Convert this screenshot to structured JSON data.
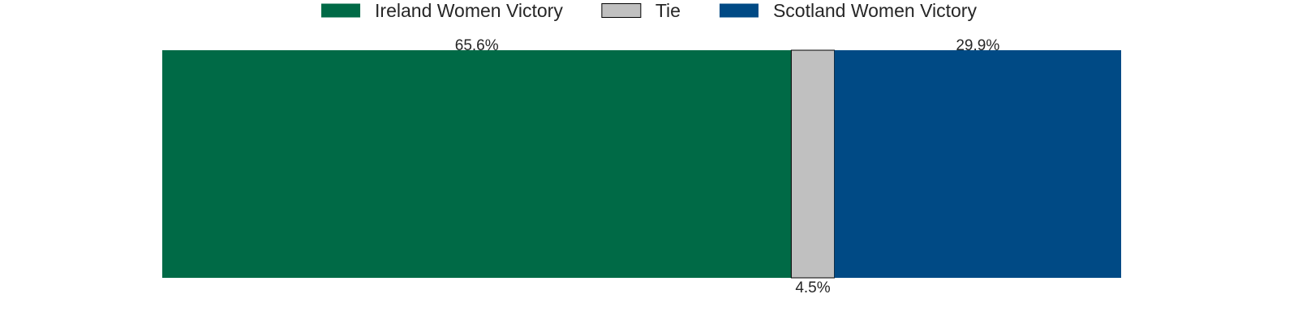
{
  "chart_data": {
    "type": "bar",
    "orientation": "horizontal",
    "stacked": true,
    "categories": [
      ""
    ],
    "series": [
      {
        "name": "Ireland Women Victory",
        "values": [
          65.6
        ],
        "label": "65.6%",
        "color": "#006a46"
      },
      {
        "name": "Tie",
        "values": [
          4.5
        ],
        "label": "4.5%",
        "color": "#c0c0c0"
      },
      {
        "name": "Scotland Women Victory",
        "values": [
          29.9
        ],
        "label": "29.9%",
        "color": "#004a85"
      }
    ],
    "xlim": [
      0,
      100
    ],
    "grid": false,
    "legend": "top-center",
    "title": "",
    "xlabel": "",
    "ylabel": ""
  }
}
